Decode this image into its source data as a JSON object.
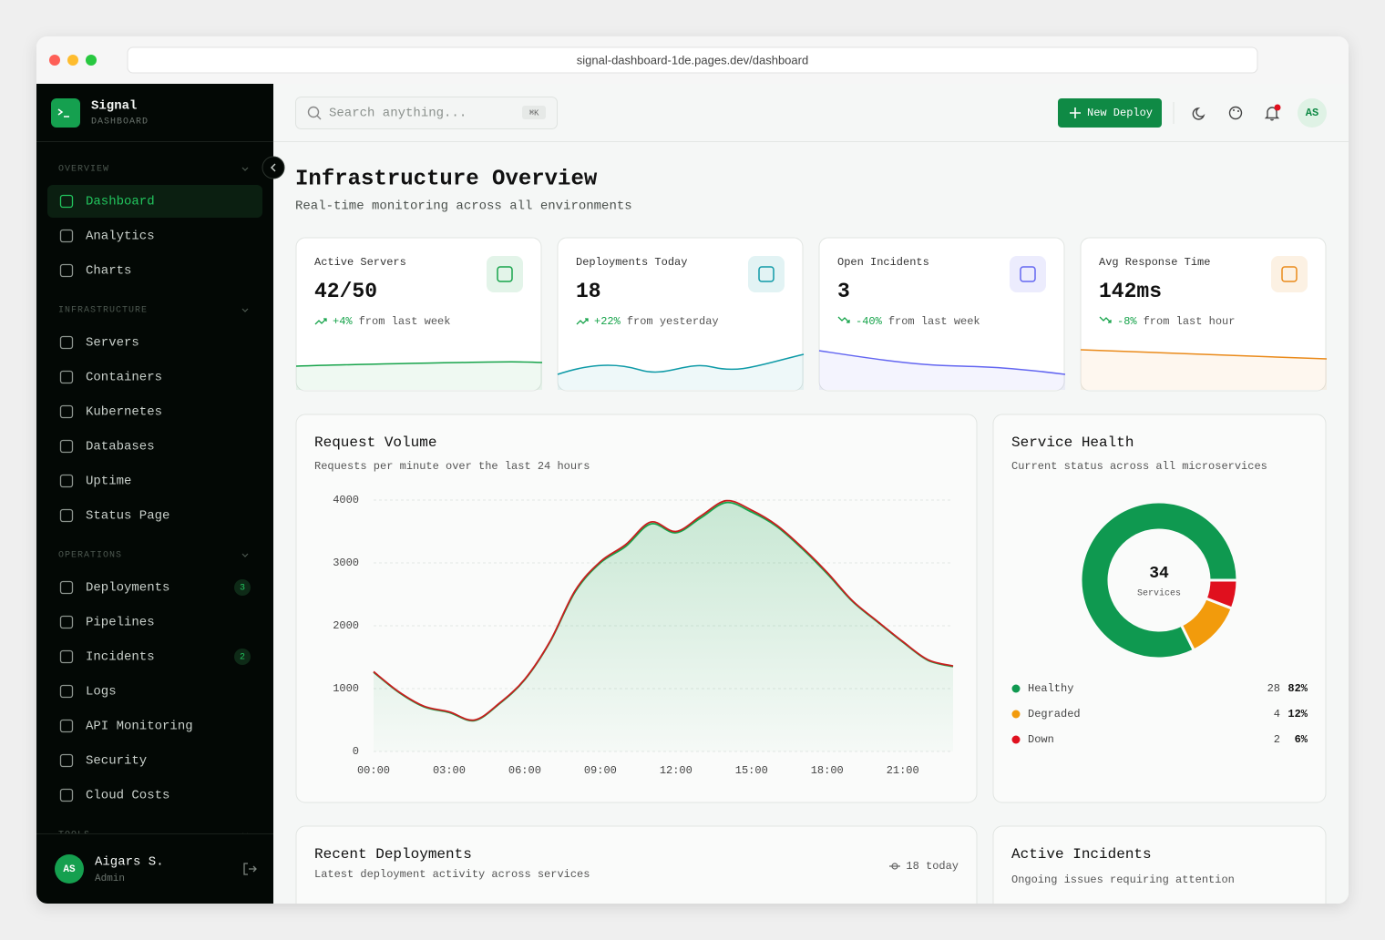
{
  "browser": {
    "url": "signal-dashboard-1de.pages.dev/dashboard"
  },
  "sidebar": {
    "brand": "Signal",
    "brand_sub": "DASHBOARD",
    "sections": [
      {
        "title": "OVERVIEW",
        "items": [
          {
            "label": "Dashboard",
            "active": true
          },
          {
            "label": "Analytics"
          },
          {
            "label": "Charts"
          }
        ]
      },
      {
        "title": "INFRASTRUCTURE",
        "items": [
          {
            "label": "Servers"
          },
          {
            "label": "Containers"
          },
          {
            "label": "Kubernetes"
          },
          {
            "label": "Databases"
          },
          {
            "label": "Uptime"
          },
          {
            "label": "Status Page"
          }
        ]
      },
      {
        "title": "OPERATIONS",
        "items": [
          {
            "label": "Deployments",
            "badge": 3
          },
          {
            "label": "Pipelines"
          },
          {
            "label": "Incidents",
            "badge": 2
          },
          {
            "label": "Logs"
          },
          {
            "label": "API Monitoring"
          },
          {
            "label": "Security"
          },
          {
            "label": "Cloud Costs"
          }
        ]
      },
      {
        "title": "TOOLS",
        "items": []
      }
    ],
    "user": {
      "initials": "AS",
      "name": "Aigars S.",
      "role": "Admin"
    }
  },
  "topbar": {
    "search_placeholder": "Search anything...",
    "shortcut": "⌘K",
    "new_deploy": "New Deploy",
    "avatar": "AS"
  },
  "header": {
    "title": "Infrastructure Overview",
    "subtitle": "Real-time monitoring across all environments"
  },
  "stats": [
    {
      "label": "Active Servers",
      "value": "42/50",
      "change": "+4%",
      "period": "from last week",
      "color": "#16a34a"
    },
    {
      "label": "Deployments Today",
      "value": "18",
      "change": "+22%",
      "period": "from yesterday",
      "color": "#0e9aa7"
    },
    {
      "label": "Open Incidents",
      "value": "3",
      "change": "-40%",
      "period": "from last week",
      "color": "#6366f1"
    },
    {
      "label": "Avg Response Time",
      "value": "142ms",
      "change": "-8%",
      "period": "from last hour",
      "color": "#ea8a1a"
    }
  ],
  "request_volume": {
    "type": "line",
    "title": "Request Volume",
    "subtitle": "Requests per minute over the last 24 hours",
    "categories": [
      "00:00",
      null,
      null,
      "03:00",
      null,
      null,
      "06:00",
      null,
      null,
      "09:00",
      null,
      null,
      "12:00",
      null,
      null,
      "15:00",
      null,
      null,
      "18:00",
      null,
      null,
      "21:00",
      null,
      null
    ],
    "series": [
      {
        "color": "#16a34a",
        "values": [
          1260,
          940,
          710,
          620,
          490,
          760,
          1140,
          1740,
          2540,
          3000,
          3260,
          3620,
          3480,
          3720,
          3960,
          3810,
          3580,
          3230,
          2830,
          2390,
          2060,
          1740,
          1450,
          1350
        ]
      },
      {
        "color": "#c81e1e",
        "values": [
          1270,
          950,
          720,
          630,
          500,
          770,
          1150,
          1750,
          2560,
          3020,
          3290,
          3650,
          3500,
          3750,
          3990,
          3840,
          3600,
          3250,
          2850,
          2400,
          2070,
          1750,
          1460,
          1360
        ]
      }
    ],
    "ylim": [
      0,
      4000
    ],
    "yticks": [
      0,
      1000,
      2000,
      3000,
      4000
    ],
    "grid": true
  },
  "service_health": {
    "type": "donut",
    "title": "Service Health",
    "subtitle": "Current status across all microservices",
    "total": 34,
    "total_label": "Services",
    "categories": [
      "Healthy",
      "Degraded",
      "Down"
    ],
    "values": [
      28,
      4,
      2
    ],
    "value_labels": [
      "82%",
      "12%",
      "6%"
    ],
    "colors": [
      "#0f9950",
      "#f29b0c",
      "#e0101e"
    ]
  },
  "recent_deployments": {
    "title": "Recent Deployments",
    "subtitle": "Latest deployment activity across services",
    "badge": "18 today"
  },
  "active_incidents": {
    "title": "Active Incidents",
    "subtitle": "Ongoing issues requiring attention"
  }
}
